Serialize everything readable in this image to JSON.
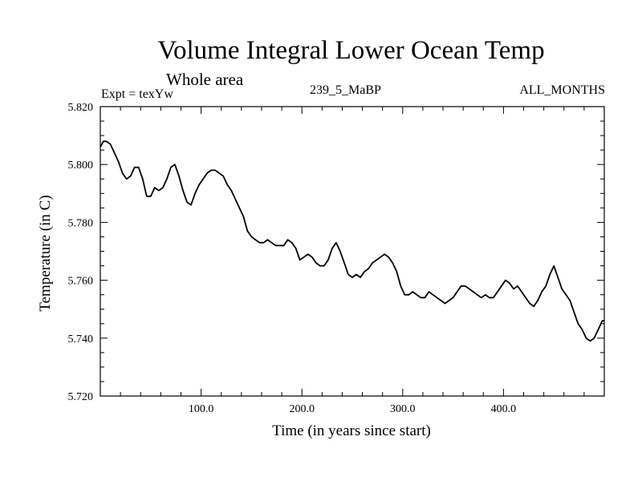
{
  "chart_data": {
    "type": "line",
    "title": "Volume Integral Lower Ocean Temp",
    "subtitle": "Whole area",
    "annotations": {
      "left": "Expt = texYw",
      "center": "239_5_MaBP",
      "right": "ALL_MONTHS"
    },
    "xlabel": "Time (in years since start)",
    "ylabel": "Temperature (in C)",
    "xlim": [
      0,
      500
    ],
    "ylim": [
      5.72,
      5.82
    ],
    "x_ticks": [
      {
        "value": 100,
        "label": "100.0"
      },
      {
        "value": 200,
        "label": "200.0"
      },
      {
        "value": 300,
        "label": "300.0"
      },
      {
        "value": 400,
        "label": "400.0"
      }
    ],
    "y_ticks": [
      {
        "value": 5.72,
        "label": "5.720"
      },
      {
        "value": 5.74,
        "label": "5.740"
      },
      {
        "value": 5.76,
        "label": "5.760"
      },
      {
        "value": 5.78,
        "label": "5.780"
      },
      {
        "value": 5.8,
        "label": "5.800"
      },
      {
        "value": 5.82,
        "label": "5.820"
      }
    ],
    "grid": false,
    "series": [
      {
        "x": [
          0,
          3,
          6,
          10,
          14,
          18,
          22,
          26,
          30,
          34,
          38,
          42,
          46,
          50,
          54,
          58,
          62,
          66,
          70,
          74,
          78,
          82,
          86,
          90,
          94,
          98,
          102,
          106,
          110,
          114,
          118,
          122,
          126,
          130,
          134,
          138,
          142,
          146,
          150,
          154,
          158,
          162,
          166,
          170,
          174,
          178,
          182,
          186,
          190,
          194,
          198,
          202,
          206,
          210,
          214,
          218,
          222,
          226,
          230,
          234,
          238,
          242,
          246,
          250,
          254,
          258,
          262,
          266,
          270,
          274,
          278,
          282,
          286,
          290,
          294,
          298,
          302,
          306,
          310,
          314,
          318,
          322,
          326,
          330,
          334,
          338,
          342,
          346,
          350,
          354,
          358,
          362,
          366,
          370,
          374,
          378,
          382,
          386,
          390,
          394,
          398,
          402,
          406,
          410,
          414,
          418,
          422,
          426,
          430,
          434,
          438,
          442,
          446,
          450,
          454,
          458,
          462,
          466,
          470,
          474,
          478,
          482,
          486,
          490,
          494,
          498,
          500
        ],
        "values": [
          5.806,
          5.808,
          5.808,
          5.807,
          5.804,
          5.801,
          5.797,
          5.795,
          5.796,
          5.799,
          5.799,
          5.795,
          5.789,
          5.789,
          5.792,
          5.791,
          5.792,
          5.795,
          5.799,
          5.8,
          5.796,
          5.791,
          5.787,
          5.786,
          5.79,
          5.793,
          5.795,
          5.797,
          5.798,
          5.798,
          5.797,
          5.796,
          5.793,
          5.791,
          5.788,
          5.785,
          5.782,
          5.777,
          5.775,
          5.774,
          5.773,
          5.773,
          5.774,
          5.773,
          5.772,
          5.772,
          5.772,
          5.774,
          5.773,
          5.771,
          5.767,
          5.768,
          5.769,
          5.768,
          5.766,
          5.765,
          5.765,
          5.767,
          5.771,
          5.773,
          5.77,
          5.766,
          5.762,
          5.761,
          5.762,
          5.761,
          5.763,
          5.764,
          5.766,
          5.767,
          5.768,
          5.769,
          5.768,
          5.766,
          5.763,
          5.758,
          5.755,
          5.755,
          5.756,
          5.755,
          5.754,
          5.754,
          5.756,
          5.755,
          5.754,
          5.753,
          5.752,
          5.753,
          5.754,
          5.756,
          5.758,
          5.758,
          5.757,
          5.756,
          5.755,
          5.754,
          5.755,
          5.754,
          5.754,
          5.756,
          5.758,
          5.76,
          5.759,
          5.757,
          5.758,
          5.756,
          5.754,
          5.752,
          5.751,
          5.753,
          5.756,
          5.758,
          5.762,
          5.765,
          5.761,
          5.757,
          5.755,
          5.753,
          5.749,
          5.745,
          5.743,
          5.74,
          5.739,
          5.74,
          5.743,
          5.746,
          5.746
        ]
      }
    ]
  }
}
